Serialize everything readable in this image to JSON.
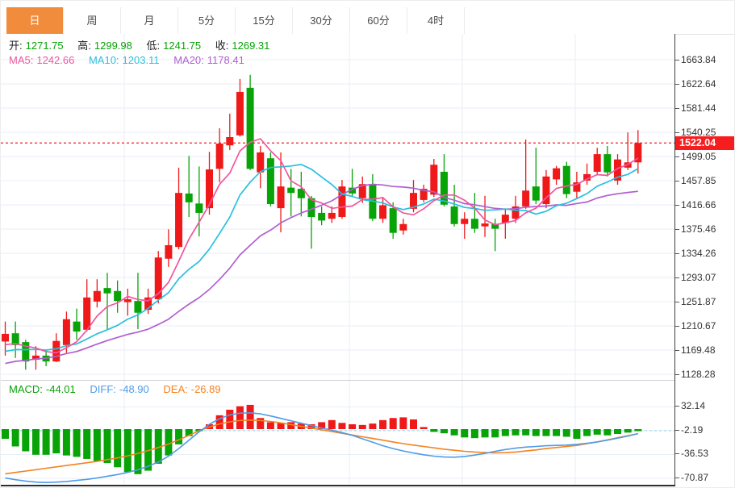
{
  "tabbar": {
    "tabs": [
      {
        "label": "日",
        "active": true
      },
      {
        "label": "周",
        "active": false
      },
      {
        "label": "月",
        "active": false
      },
      {
        "label": "5分",
        "active": false
      },
      {
        "label": "15分",
        "active": false
      },
      {
        "label": "30分",
        "active": false
      },
      {
        "label": "60分",
        "active": false
      },
      {
        "label": "4时",
        "active": false
      }
    ]
  },
  "info_bar": {
    "open_label": "开:",
    "open_value": "1271.75",
    "high_label": "高:",
    "high_value": "1299.98",
    "low_label": "低:",
    "low_value": "1241.75",
    "close_label": "收:",
    "close_value": "1269.31"
  },
  "ma_bar": {
    "ma5_label": "MA5:",
    "ma5_value": "1242.66",
    "ma10_label": "MA10:",
    "ma10_value": "1203.11",
    "ma20_label": "MA20:",
    "ma20_value": "1178.41"
  },
  "macd_bar": {
    "macd_label": "MACD:",
    "macd_value": "-44.01",
    "diff_label": "DIFF:",
    "diff_value": "-48.90",
    "dea_label": "DEA:",
    "dea_value": "-26.89"
  },
  "price_marker": {
    "value": "1522.04"
  },
  "colors": {
    "up": "#f01919",
    "down": "#07a307",
    "ma5": "#f0559f",
    "ma10": "#29bfdf",
    "ma20": "#b05fd0",
    "diff": "#4f9ce8",
    "dea": "#f5821f",
    "tab_active": "#f28c3d",
    "marker": "#f51d1d",
    "grid": "#e8eef7",
    "vgrid": "#e9edf3",
    "macd_dash": "#9fd8e8",
    "axis_text": "#333333"
  },
  "chart_data": {
    "type": "candlestick",
    "legend": [
      "MA5",
      "MA10",
      "MA20"
    ],
    "price_axis_ticks": [
      "1663.84",
      "1622.64",
      "1581.44",
      "1540.25",
      "1499.05",
      "1457.85",
      "1416.66",
      "1375.46",
      "1334.26",
      "1293.07",
      "1251.87",
      "1210.67",
      "1169.48",
      "1128.28"
    ],
    "price_axis_top": 1663.84,
    "price_axis_step": 41.2,
    "macd_axis_ticks": [
      "32.14",
      "-2.19",
      "-36.53",
      "-70.87"
    ],
    "macd_axis_values": [
      32.14,
      -2.19,
      -36.53,
      -70.87
    ],
    "last_price": 1522.04,
    "candles_ohlc": [
      [
        1184,
        1218,
        1160,
        1197
      ],
      [
        1198,
        1218,
        1156,
        1178
      ],
      [
        1183,
        1187,
        1136,
        1150
      ],
      [
        1153,
        1176,
        1136,
        1160
      ],
      [
        1160,
        1170,
        1142,
        1150
      ],
      [
        1150,
        1198,
        1149,
        1185
      ],
      [
        1178,
        1235,
        1164,
        1222
      ],
      [
        1218,
        1240,
        1187,
        1201
      ],
      [
        1204,
        1290,
        1201,
        1259
      ],
      [
        1252,
        1290,
        1242,
        1270
      ],
      [
        1275,
        1301,
        1205,
        1266
      ],
      [
        1270,
        1288,
        1233,
        1253
      ],
      [
        1251,
        1274,
        1228,
        1256
      ],
      [
        1253,
        1301,
        1205,
        1233
      ],
      [
        1238,
        1274,
        1231,
        1259
      ],
      [
        1256,
        1338,
        1249,
        1327
      ],
      [
        1325,
        1375,
        1311,
        1348
      ],
      [
        1345,
        1480,
        1341,
        1437
      ],
      [
        1436,
        1500,
        1396,
        1421
      ],
      [
        1419,
        1482,
        1363,
        1403
      ],
      [
        1411,
        1507,
        1400,
        1477
      ],
      [
        1478,
        1547,
        1455,
        1521
      ],
      [
        1518,
        1572,
        1510,
        1532
      ],
      [
        1535,
        1631,
        1533,
        1609
      ],
      [
        1616,
        1638,
        1476,
        1478
      ],
      [
        1472,
        1517,
        1445,
        1506
      ],
      [
        1496,
        1506,
        1414,
        1418
      ],
      [
        1411,
        1506,
        1370,
        1448
      ],
      [
        1446,
        1478,
        1397,
        1437
      ],
      [
        1444,
        1473,
        1397,
        1428
      ],
      [
        1428,
        1432,
        1342,
        1396
      ],
      [
        1403,
        1414,
        1382,
        1390
      ],
      [
        1393,
        1414,
        1386,
        1403
      ],
      [
        1396,
        1459,
        1393,
        1448
      ],
      [
        1446,
        1478,
        1430,
        1436
      ],
      [
        1428,
        1465,
        1420,
        1452
      ],
      [
        1451,
        1469,
        1389,
        1393
      ],
      [
        1393,
        1428,
        1386,
        1416
      ],
      [
        1411,
        1421,
        1359,
        1369
      ],
      [
        1373,
        1393,
        1366,
        1384
      ],
      [
        1410,
        1459,
        1404,
        1437
      ],
      [
        1425,
        1451,
        1421,
        1444
      ],
      [
        1434,
        1495,
        1430,
        1485
      ],
      [
        1473,
        1503,
        1414,
        1417
      ],
      [
        1414,
        1451,
        1380,
        1384
      ],
      [
        1384,
        1404,
        1359,
        1393
      ],
      [
        1393,
        1437,
        1369,
        1376
      ],
      [
        1380,
        1432,
        1362,
        1385
      ],
      [
        1384,
        1393,
        1338,
        1376
      ],
      [
        1386,
        1410,
        1359,
        1400
      ],
      [
        1393,
        1432,
        1386,
        1414
      ],
      [
        1414,
        1528,
        1410,
        1441
      ],
      [
        1448,
        1514,
        1418,
        1424
      ],
      [
        1418,
        1476,
        1411,
        1465
      ],
      [
        1460,
        1483,
        1451,
        1479
      ],
      [
        1483,
        1490,
        1428,
        1435
      ],
      [
        1439,
        1473,
        1428,
        1455
      ],
      [
        1458,
        1487,
        1451,
        1469
      ],
      [
        1473,
        1514,
        1469,
        1503
      ],
      [
        1503,
        1517,
        1465,
        1472
      ],
      [
        1458,
        1503,
        1451,
        1494
      ],
      [
        1480,
        1540,
        1476,
        1489
      ],
      [
        1489,
        1544,
        1470,
        1522.04
      ]
    ],
    "ma_history_seed": [
      1108,
      1112,
      1116,
      1120,
      1124,
      1128,
      1132,
      1136,
      1140,
      1144,
      1148,
      1152,
      1156,
      1160,
      1164,
      1168,
      1172,
      1176,
      1180
    ],
    "macd": {
      "histogram": [
        -14,
        -25,
        -32,
        -37,
        -37,
        -35,
        -38,
        -40,
        -43,
        -46,
        -49,
        -55,
        -62,
        -65,
        -60,
        -50,
        -38,
        -22,
        -10,
        -3,
        7,
        20,
        28,
        33,
        35,
        16,
        10,
        9,
        10,
        8,
        7,
        10,
        13,
        9,
        7,
        6,
        8,
        13,
        16,
        17,
        14,
        3,
        -4,
        -6,
        -9,
        -12,
        -13,
        -12,
        -12,
        -10,
        -9,
        -9,
        -10,
        -10,
        -10,
        -11,
        -14,
        -10,
        -8,
        -9,
        -7,
        -5,
        -3
      ],
      "diff": [
        -70.5,
        -73,
        -75,
        -76.5,
        -77,
        -76.5,
        -75.5,
        -74,
        -72.5,
        -70.5,
        -68,
        -65.5,
        -62.5,
        -58.5,
        -53.5,
        -47.5,
        -39,
        -28,
        -16,
        -4,
        7,
        15,
        20.5,
        23,
        23.5,
        22,
        19,
        15.5,
        12,
        8.5,
        5,
        1.5,
        -1.5,
        -5,
        -9,
        -14,
        -19,
        -24,
        -28,
        -31.5,
        -34.5,
        -37,
        -39,
        -40.3,
        -40.5,
        -39.5,
        -37.5,
        -35,
        -32,
        -29.5,
        -27.5,
        -26,
        -25,
        -24,
        -23.5,
        -23,
        -22,
        -20.5,
        -18.5,
        -16,
        -13,
        -10,
        -6.5
      ],
      "dea": [
        -64.5,
        -62.5,
        -60.5,
        -58.5,
        -56.5,
        -54.5,
        -52.5,
        -50.5,
        -48.5,
        -46.5,
        -44,
        -41.5,
        -38.5,
        -35,
        -31,
        -26.5,
        -21.5,
        -15.5,
        -9,
        -2.5,
        3,
        7.5,
        10.5,
        12.5,
        13,
        12.5,
        11,
        9,
        6.5,
        4,
        1.5,
        -1,
        -3.5,
        -6,
        -8.5,
        -11,
        -13.5,
        -16,
        -18.5,
        -21,
        -23,
        -25,
        -27,
        -29,
        -30.5,
        -32,
        -33,
        -33.8,
        -34.2,
        -34,
        -33,
        -31.5,
        -30,
        -28,
        -26.5,
        -25,
        -23.5,
        -21,
        -18.5,
        -15.5,
        -12.5,
        -9.5,
        -6.5
      ]
    }
  }
}
